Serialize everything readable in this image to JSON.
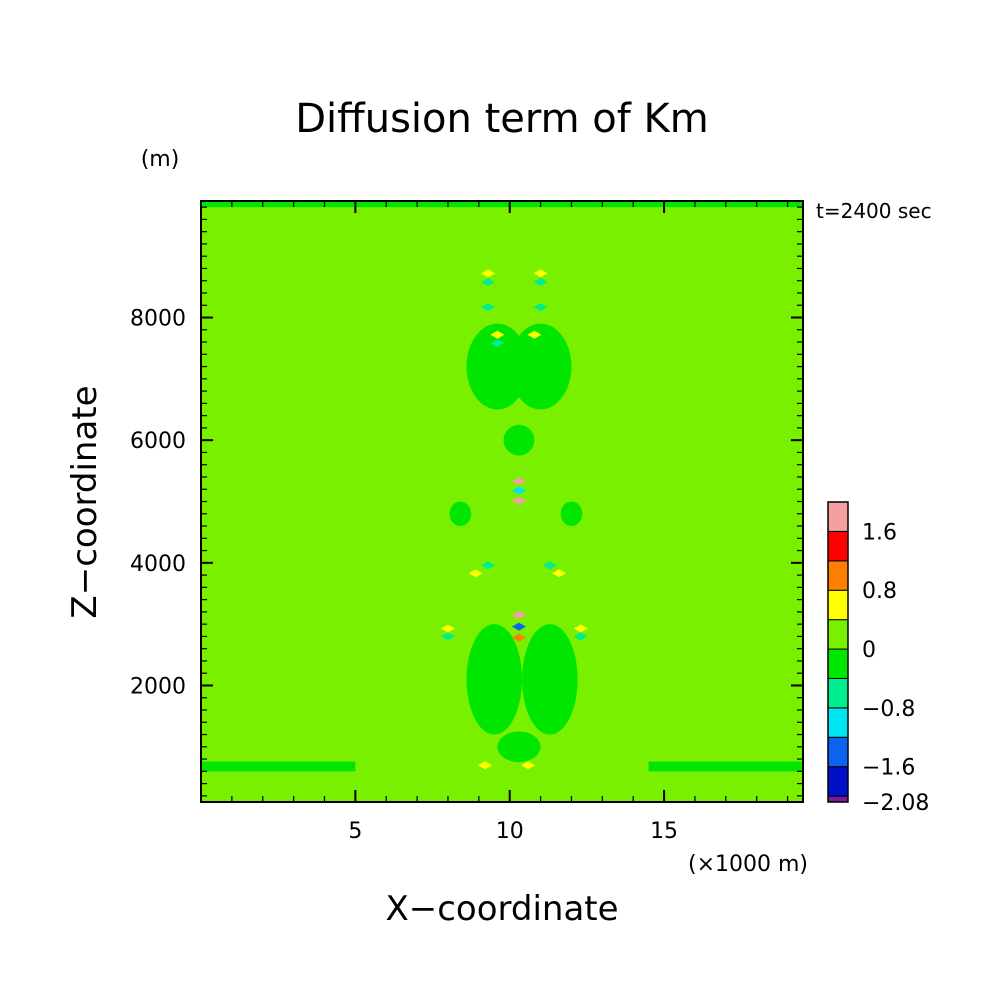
{
  "chart_data": {
    "type": "heatmap",
    "title": "Diffusion term of Km",
    "xlabel": "X−coordinate",
    "ylabel": "Z−coordinate",
    "x_unit": "(×1000 m)",
    "y_unit": "(m)",
    "time_label": "t=2400 sec",
    "xlim": [
      0,
      19.5
    ],
    "ylim": [
      100,
      9900
    ],
    "x_ticks": [
      5,
      10,
      15
    ],
    "x_tick_labels": [
      "5",
      "10",
      "15"
    ],
    "y_ticks": [
      2000,
      4000,
      6000,
      8000
    ],
    "y_tick_labels": [
      "2000",
      "4000",
      "6000",
      "8000"
    ],
    "grid": false,
    "background_level": "0 to 0.4",
    "colorbar": {
      "levels": [
        -2.08,
        -2.0,
        -1.6,
        -1.2,
        -0.8,
        -0.4,
        0,
        0.4,
        0.8,
        1.2,
        1.6,
        2.0
      ],
      "tick_labels": [
        "1.6",
        "0.8",
        "0",
        "−0.8",
        "−1.6",
        "−2.08"
      ],
      "tick_values": [
        1.6,
        0.8,
        0,
        -0.8,
        -1.6,
        -2.08
      ],
      "colors_bottom_to_top": [
        "#7a1aa0",
        "#0010c8",
        "#0a64f0",
        "#00e6f0",
        "#00ee90",
        "#00e600",
        "#78f000",
        "#ffff00",
        "#ff7f00",
        "#ff0000",
        "#f4a0a0"
      ]
    },
    "features": [
      {
        "kind": "band",
        "level": -0.4,
        "xs": [
          0,
          19.5
        ],
        "z": [
          9800,
          9900
        ]
      },
      {
        "kind": "band",
        "level": -0.4,
        "xs": [
          0,
          5
        ],
        "z": [
          600,
          760
        ]
      },
      {
        "kind": "band",
        "level": -0.4,
        "xs": [
          14.5,
          19.5
        ],
        "z": [
          600,
          760
        ]
      },
      {
        "kind": "blob",
        "level": -0.4,
        "x": 9.5,
        "z": 2100,
        "rx": 0.9,
        "rz": 900
      },
      {
        "kind": "blob",
        "level": -0.4,
        "x": 11.3,
        "z": 2100,
        "rx": 0.9,
        "rz": 900
      },
      {
        "kind": "blob",
        "level": -0.4,
        "x": 9.6,
        "z": 7200,
        "rx": 1.0,
        "rz": 700
      },
      {
        "kind": "blob",
        "level": -0.4,
        "x": 11.0,
        "z": 7200,
        "rx": 1.0,
        "rz": 700
      },
      {
        "kind": "blob",
        "level": -0.4,
        "x": 8.4,
        "z": 4800,
        "rx": 0.35,
        "rz": 200
      },
      {
        "kind": "blob",
        "level": -0.4,
        "x": 12.0,
        "z": 4800,
        "rx": 0.35,
        "rz": 200
      },
      {
        "kind": "blob",
        "level": -0.4,
        "x": 10.3,
        "z": 6000,
        "rx": 0.5,
        "rz": 250
      },
      {
        "kind": "blob",
        "level": -0.4,
        "x": 10.3,
        "z": 1000,
        "rx": 0.7,
        "rz": 250
      },
      {
        "kind": "spot",
        "level": 1.8,
        "x": 10.3,
        "z": 3150
      },
      {
        "kind": "spot",
        "level": -1.4,
        "x": 10.3,
        "z": 2960
      },
      {
        "kind": "spot",
        "level": 1.0,
        "x": 10.3,
        "z": 2780
      },
      {
        "kind": "spot",
        "level": 1.8,
        "x": 10.3,
        "z": 5330
      },
      {
        "kind": "spot",
        "level": -1.0,
        "x": 10.3,
        "z": 5180
      },
      {
        "kind": "spot",
        "level": 1.8,
        "x": 10.3,
        "z": 5010
      },
      {
        "kind": "spot",
        "level": 0.6,
        "x": 9.3,
        "z": 8720
      },
      {
        "kind": "spot",
        "level": 0.6,
        "x": 11.0,
        "z": 8720
      },
      {
        "kind": "spot",
        "level": -0.8,
        "x": 9.3,
        "z": 8580
      },
      {
        "kind": "spot",
        "level": -0.8,
        "x": 11.0,
        "z": 8580
      },
      {
        "kind": "spot",
        "level": 0.6,
        "x": 9.6,
        "z": 7720
      },
      {
        "kind": "spot",
        "level": 0.6,
        "x": 10.8,
        "z": 7720
      },
      {
        "kind": "spot",
        "level": -0.8,
        "x": 9.6,
        "z": 7580
      },
      {
        "kind": "spot",
        "level": 0.6,
        "x": 8.9,
        "z": 3830
      },
      {
        "kind": "spot",
        "level": 0.6,
        "x": 11.6,
        "z": 3830
      },
      {
        "kind": "spot",
        "level": -0.8,
        "x": 9.3,
        "z": 3960
      },
      {
        "kind": "spot",
        "level": -0.8,
        "x": 11.3,
        "z": 3960
      },
      {
        "kind": "spot",
        "level": 0.6,
        "x": 8.0,
        "z": 2930
      },
      {
        "kind": "spot",
        "level": 0.6,
        "x": 12.3,
        "z": 2930
      },
      {
        "kind": "spot",
        "level": -0.8,
        "x": 8.0,
        "z": 2800
      },
      {
        "kind": "spot",
        "level": -0.8,
        "x": 12.3,
        "z": 2800
      },
      {
        "kind": "spot",
        "level": 0.6,
        "x": 9.2,
        "z": 700
      },
      {
        "kind": "spot",
        "level": 0.6,
        "x": 10.6,
        "z": 700
      },
      {
        "kind": "spot",
        "level": -0.8,
        "x": 9.3,
        "z": 8170
      },
      {
        "kind": "spot",
        "level": -0.8,
        "x": 11.0,
        "z": 8170
      }
    ]
  }
}
